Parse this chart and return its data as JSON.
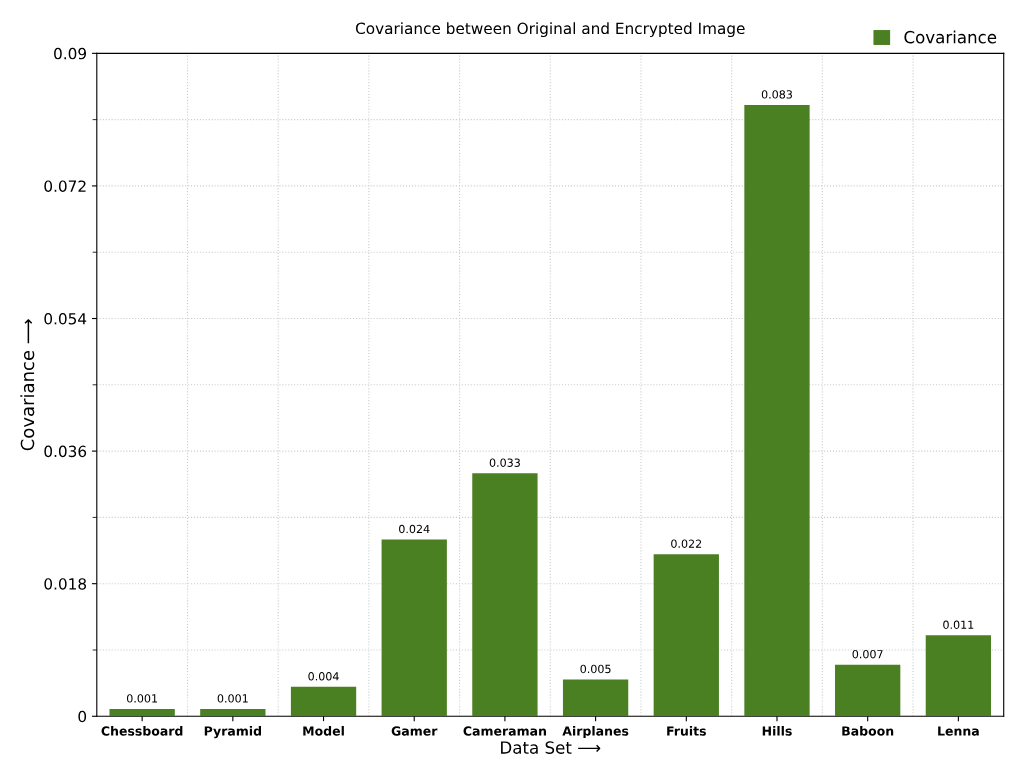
{
  "chart_data": {
    "type": "bar",
    "title": "Covariance between Original and Encrypted Image",
    "xlabel": "Data Set ⟶",
    "ylabel": "Covariance ⟶",
    "categories": [
      "Chessboard",
      "Pyramid",
      "Model",
      "Gamer",
      "Cameraman",
      "Airplanes",
      "Fruits",
      "Hills",
      "Baboon",
      "Lenna"
    ],
    "series": [
      {
        "name": "Covariance",
        "color": "#4a7f22",
        "values": [
          0.001,
          0.001,
          0.004,
          0.024,
          0.033,
          0.005,
          0.022,
          0.083,
          0.007,
          0.011
        ]
      }
    ],
    "ylim": [
      0,
      0.09
    ],
    "yticks": [
      0,
      0.018,
      0.036,
      0.054,
      0.072,
      0.09
    ],
    "grid": true,
    "legend": "top right",
    "data_labels": true
  }
}
